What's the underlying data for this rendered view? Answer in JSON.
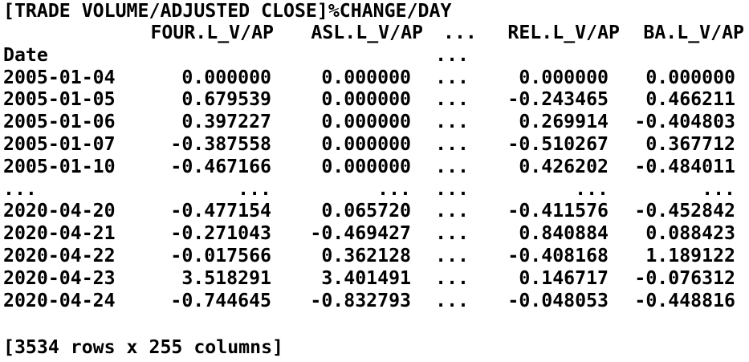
{
  "title": "[TRADE VOLUME/ADJUSTED CLOSE]%CHANGE/DAY",
  "columns": [
    "FOUR.L_V/AP",
    "ASL.L_V/AP",
    "...",
    "REL.L_V/AP",
    "BA.L_V/AP"
  ],
  "index_name": "Date",
  "index_name_ellipsis": "...",
  "rows": [
    {
      "date": "2005-01-04",
      "four": "0.000000",
      "asl": "0.000000",
      "ell": "...",
      "rel": "0.000000",
      "ba": "0.000000"
    },
    {
      "date": "2005-01-05",
      "four": "0.679539",
      "asl": "0.000000",
      "ell": "...",
      "rel": "-0.243465",
      "ba": "0.466211"
    },
    {
      "date": "2005-01-06",
      "four": "0.397227",
      "asl": "0.000000",
      "ell": "...",
      "rel": "0.269914",
      "ba": "-0.404803"
    },
    {
      "date": "2005-01-07",
      "four": "-0.387558",
      "asl": "0.000000",
      "ell": "...",
      "rel": "-0.510267",
      "ba": "0.367712"
    },
    {
      "date": "2005-01-10",
      "four": "-0.467166",
      "asl": "0.000000",
      "ell": "...",
      "rel": "0.426202",
      "ba": "-0.484011"
    },
    {
      "date": "...",
      "four": "...",
      "asl": "...",
      "ell": "...",
      "rel": "...",
      "ba": "..."
    },
    {
      "date": "2020-04-20",
      "four": "-0.477154",
      "asl": "0.065720",
      "ell": "...",
      "rel": "-0.411576",
      "ba": "-0.452842"
    },
    {
      "date": "2020-04-21",
      "four": "-0.271043",
      "asl": "-0.469427",
      "ell": "...",
      "rel": "0.840884",
      "ba": "0.088423"
    },
    {
      "date": "2020-04-22",
      "four": "-0.017566",
      "asl": "0.362128",
      "ell": "...",
      "rel": "-0.408168",
      "ba": "1.189122"
    },
    {
      "date": "2020-04-23",
      "four": "3.518291",
      "asl": "3.401491",
      "ell": "...",
      "rel": "0.146717",
      "ba": "-0.076312"
    },
    {
      "date": "2020-04-24",
      "four": "-0.744645",
      "asl": "-0.832793",
      "ell": "...",
      "rel": "-0.048053",
      "ba": "-0.448816"
    }
  ],
  "footer": "[3534 rows x 255 columns]"
}
